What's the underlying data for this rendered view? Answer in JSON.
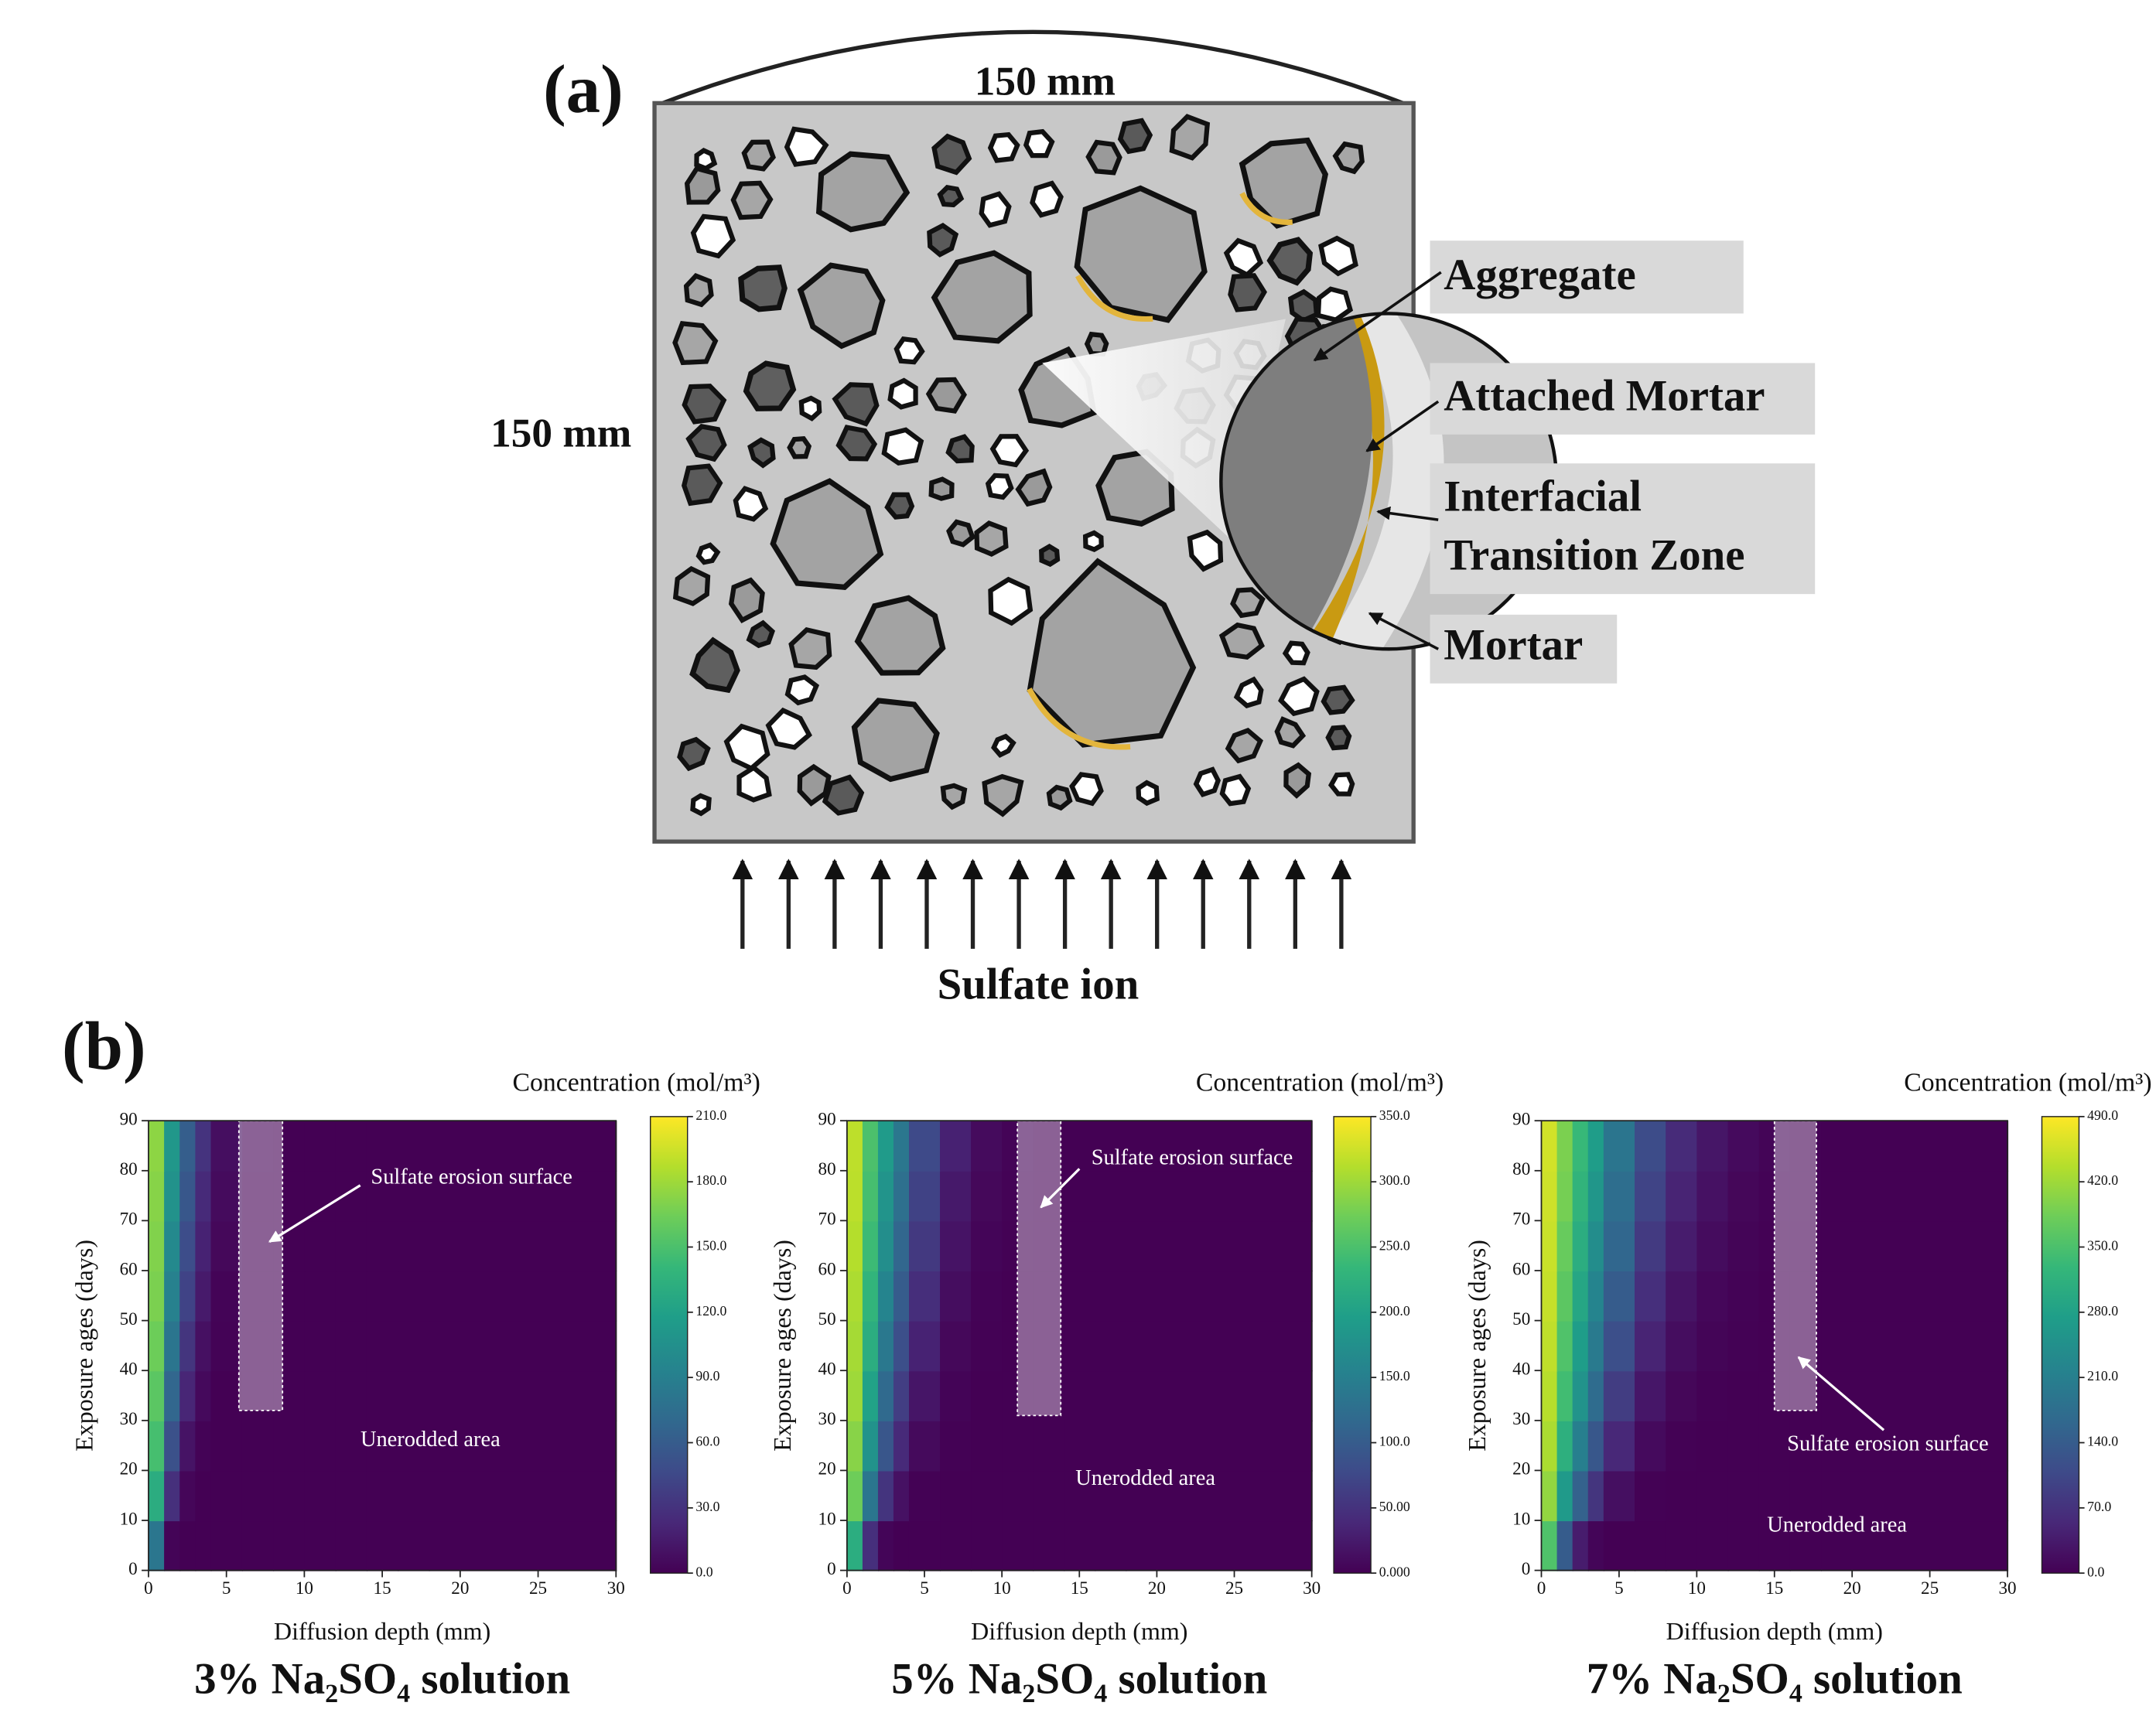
{
  "panel_a_label": "(a)",
  "panel_b_label": "(b)",
  "diagram": {
    "width_label": "150 mm",
    "height_label": "150 mm",
    "aggregate_label": "Aggregate",
    "attached_mortar_label": "Attached Mortar",
    "itz_label": [
      "Interfacial",
      "Transition Zone"
    ],
    "mortar_label": "Mortar",
    "flow_label": "Sulfate ion"
  },
  "chart_data": [
    {
      "type": "heatmap",
      "caption": "3% Na₂SO₄ solution",
      "xlabel": "Diffusion depth (mm)",
      "ylabel": "Exposure ages (days)",
      "colorbar_title": "Concentration (mol/m³)",
      "xlim": [
        0,
        30
      ],
      "xticks": [
        0,
        5,
        10,
        15,
        20,
        25,
        30
      ],
      "ylim": [
        0,
        90
      ],
      "yticks": [
        0,
        10,
        20,
        30,
        40,
        50,
        60,
        70,
        80,
        90
      ],
      "clim": [
        0,
        210
      ],
      "cticks": [
        {
          "value": 0,
          "label": "0.0"
        },
        {
          "value": 30,
          "label": "30.0"
        },
        {
          "value": 60,
          "label": "60.0"
        },
        {
          "value": 90,
          "label": "90.0"
        },
        {
          "value": 120,
          "label": "120.0"
        },
        {
          "value": 150,
          "label": "150.0"
        },
        {
          "value": 180,
          "label": "180.0"
        },
        {
          "value": 210,
          "label": "210.0"
        }
      ],
      "x_bins": [
        0,
        1,
        2,
        3,
        4,
        6,
        8,
        10,
        12,
        14,
        16,
        18,
        30
      ],
      "y_bins": [
        0,
        10,
        20,
        30,
        40,
        50,
        60,
        70,
        80,
        90
      ],
      "z": [
        [
          83,
          2,
          0,
          0,
          0,
          0,
          0,
          0,
          0,
          0,
          0,
          0
        ],
        [
          130,
          29,
          3,
          0,
          0,
          0,
          0,
          0,
          0,
          0,
          0,
          0
        ],
        [
          147,
          52,
          11,
          1,
          0,
          0,
          0,
          0,
          0,
          0,
          0,
          0
        ],
        [
          156,
          69,
          22,
          5,
          0,
          0,
          0,
          0,
          0,
          0,
          0,
          0
        ],
        [
          163,
          82,
          32,
          9,
          1,
          0,
          0,
          0,
          0,
          0,
          0,
          0
        ],
        [
          168,
          92,
          42,
          15,
          2,
          0,
          0,
          0,
          0,
          0,
          0,
          0
        ],
        [
          170,
          99,
          49,
          20,
          4,
          0,
          0,
          0,
          0,
          0,
          0,
          0
        ],
        [
          172,
          107,
          57,
          25,
          6,
          0,
          0,
          0,
          0,
          0,
          0,
          0
        ],
        [
          174,
          111,
          62,
          31,
          8,
          1,
          0,
          0,
          0,
          0,
          0,
          0
        ]
      ],
      "erosion_band": {
        "x": [
          5.8,
          8.6
        ],
        "y": [
          32,
          90
        ]
      },
      "erosion_label": "Sulfate erosion surface",
      "unaffected_label": "Unerodded area"
    },
    {
      "type": "heatmap",
      "caption": "5% Na₂SO₄ solution",
      "xlabel": "Diffusion depth (mm)",
      "ylabel": "Exposure ages (days)",
      "colorbar_title": "Concentration (mol/m³)",
      "xlim": [
        0,
        30
      ],
      "xticks": [
        0,
        5,
        10,
        15,
        20,
        25,
        30
      ],
      "ylim": [
        0,
        90
      ],
      "yticks": [
        0,
        10,
        20,
        30,
        40,
        50,
        60,
        70,
        80,
        90
      ],
      "clim": [
        0,
        350
      ],
      "cticks": [
        {
          "value": 0,
          "label": "0.000"
        },
        {
          "value": 50,
          "label": "50.00"
        },
        {
          "value": 100,
          "label": "100.0"
        },
        {
          "value": 150,
          "label": "150.0"
        },
        {
          "value": 200,
          "label": "200.0"
        },
        {
          "value": 250,
          "label": "250.0"
        },
        {
          "value": 300,
          "label": "300.0"
        },
        {
          "value": 350,
          "label": "350.0"
        }
      ],
      "x_bins": [
        0,
        1,
        2,
        3,
        4,
        6,
        8,
        10,
        12,
        14,
        16,
        18,
        30
      ],
      "y_bins": [
        0,
        10,
        20,
        30,
        40,
        50,
        60,
        70,
        80,
        90
      ],
      "z": [
        [
          217,
          47,
          4,
          0,
          0,
          0,
          0,
          0,
          0,
          0,
          0,
          0
        ],
        [
          272,
          137,
          53,
          16,
          1,
          0,
          0,
          0,
          0,
          0,
          0,
          0
        ],
        [
          287,
          179,
          93,
          41,
          9,
          1,
          0,
          0,
          0,
          0,
          0,
          0
        ],
        [
          299,
          200,
          120,
          64,
          20,
          3,
          0,
          0,
          0,
          0,
          0,
          0
        ],
        [
          303,
          217,
          140,
          84,
          33,
          7,
          1,
          0,
          0,
          0,
          0,
          0
        ],
        [
          307,
          228,
          159,
          101,
          46,
          12,
          2,
          0,
          0,
          0,
          0,
          0
        ],
        [
          311,
          238,
          172,
          115,
          58,
          18,
          4,
          1,
          0,
          0,
          0,
          0
        ],
        [
          315,
          245,
          180,
          128,
          69,
          24,
          7,
          2,
          0,
          0,
          0,
          0
        ],
        [
          316,
          249,
          190,
          139,
          78,
          32,
          10,
          3,
          0,
          0,
          0,
          0
        ]
      ],
      "erosion_band": {
        "x": [
          11,
          13.8
        ],
        "y": [
          31,
          90
        ]
      },
      "erosion_label": "Sulfate erosion surface",
      "unaffected_label": "Unerodded area"
    },
    {
      "type": "heatmap",
      "caption": "7% Na₂SO₄ solution",
      "xlabel": "Diffusion depth (mm)",
      "ylabel": "Exposure ages (days)",
      "colorbar_title": "Concentration (mol/m³)",
      "xlim": [
        0,
        30
      ],
      "xticks": [
        0,
        5,
        10,
        15,
        20,
        25,
        30
      ],
      "ylim": [
        0,
        90
      ],
      "yticks": [
        0,
        10,
        20,
        30,
        40,
        50,
        60,
        70,
        80,
        90
      ],
      "clim": [
        0,
        490
      ],
      "cticks": [
        {
          "value": 0,
          "label": "0.0"
        },
        {
          "value": 70,
          "label": "70.0"
        },
        {
          "value": 140,
          "label": "140.0"
        },
        {
          "value": 210,
          "label": "210.0"
        },
        {
          "value": 280,
          "label": "280.0"
        },
        {
          "value": 350,
          "label": "350.0"
        },
        {
          "value": 420,
          "label": "420.0"
        },
        {
          "value": 490,
          "label": "490.0"
        }
      ],
      "x_bins": [
        0,
        1,
        2,
        3,
        4,
        6,
        8,
        10,
        12,
        14,
        16,
        18,
        30
      ],
      "y_bins": [
        0,
        10,
        20,
        30,
        40,
        50,
        60,
        70,
        80,
        90
      ],
      "z": [
        [
          353,
          142,
          38,
          6,
          0,
          0,
          0,
          0,
          0,
          0,
          0,
          0
        ],
        [
          410,
          265,
          152,
          75,
          20,
          2,
          0,
          0,
          0,
          0,
          0,
          0
        ],
        [
          429,
          309,
          211,
          132,
          55,
          13,
          2,
          0,
          0,
          0,
          0,
          0
        ],
        [
          438,
          338,
          250,
          172,
          88,
          30,
          8,
          1,
          0,
          0,
          0,
          0
        ],
        [
          444,
          353,
          270,
          201,
          118,
          49,
          17,
          5,
          1,
          0,
          0,
          0
        ],
        [
          448,
          365,
          289,
          222,
          142,
          66,
          26,
          9,
          3,
          0,
          0,
          0
        ],
        [
          451,
          375,
          304,
          240,
          162,
          83,
          38,
          15,
          5,
          1,
          0,
          0
        ],
        [
          454,
          387,
          319,
          257,
          176,
          99,
          49,
          22,
          8,
          3,
          1,
          0
        ],
        [
          457,
          392,
          329,
          270,
          191,
          113,
          59,
          29,
          13,
          5,
          2,
          0
        ]
      ],
      "erosion_band": {
        "x": [
          15,
          17.7
        ],
        "y": [
          32,
          90
        ]
      },
      "erosion_label": "Sulfate erosion surface",
      "unaffected_label": "Unerodded area"
    }
  ]
}
